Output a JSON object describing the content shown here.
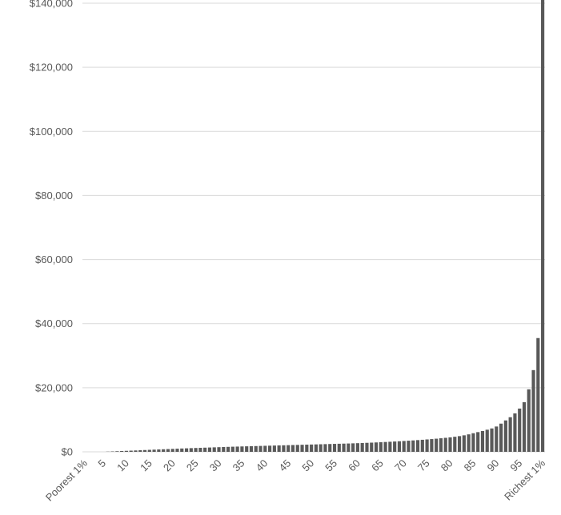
{
  "chart_data": {
    "type": "bar",
    "title": "",
    "xlabel": "",
    "ylabel": "",
    "ylim": [
      0,
      140000
    ],
    "y_ticks": [
      0,
      20000,
      40000,
      60000,
      80000,
      100000,
      120000,
      140000
    ],
    "y_tick_labels": [
      "$0",
      "$20,000",
      "$40,000",
      "$60,000",
      "$80,000",
      "$100,000",
      "$120,000",
      "$140,000"
    ],
    "x_tick_labels": [
      "Poorest 1%",
      "5",
      "10",
      "15",
      "20",
      "25",
      "30",
      "35",
      "40",
      "45",
      "50",
      "55",
      "60",
      "65",
      "70",
      "75",
      "80",
      "85",
      "90",
      "95",
      "Richest 1%"
    ],
    "x_tick_positions": [
      1,
      5,
      10,
      15,
      20,
      25,
      30,
      35,
      40,
      45,
      50,
      55,
      60,
      65,
      70,
      75,
      80,
      85,
      90,
      95,
      100
    ],
    "categories": [
      1,
      2,
      3,
      4,
      5,
      6,
      7,
      8,
      9,
      10,
      11,
      12,
      13,
      14,
      15,
      16,
      17,
      18,
      19,
      20,
      21,
      22,
      23,
      24,
      25,
      26,
      27,
      28,
      29,
      30,
      31,
      32,
      33,
      34,
      35,
      36,
      37,
      38,
      39,
      40,
      41,
      42,
      43,
      44,
      45,
      46,
      47,
      48,
      49,
      50,
      51,
      52,
      53,
      54,
      55,
      56,
      57,
      58,
      59,
      60,
      61,
      62,
      63,
      64,
      65,
      66,
      67,
      68,
      69,
      70,
      71,
      72,
      73,
      74,
      75,
      76,
      77,
      78,
      79,
      80,
      81,
      82,
      83,
      84,
      85,
      86,
      87,
      88,
      89,
      90,
      91,
      92,
      93,
      94,
      95,
      96,
      97,
      98,
      99,
      100
    ],
    "values": [
      0,
      0,
      0,
      0,
      0,
      60,
      120,
      190,
      250,
      310,
      370,
      430,
      500,
      560,
      620,
      680,
      740,
      800,
      860,
      920,
      980,
      1040,
      1090,
      1150,
      1200,
      1250,
      1300,
      1350,
      1400,
      1450,
      1500,
      1550,
      1600,
      1640,
      1680,
      1720,
      1760,
      1800,
      1840,
      1880,
      1920,
      1960,
      2000,
      2040,
      2080,
      2120,
      2160,
      2200,
      2240,
      2280,
      2320,
      2360,
      2400,
      2440,
      2480,
      2520,
      2560,
      2600,
      2650,
      2700,
      2750,
      2810,
      2870,
      2930,
      3000,
      3070,
      3140,
      3220,
      3300,
      3380,
      3470,
      3560,
      3660,
      3760,
      3870,
      3980,
      4100,
      4230,
      4370,
      4520,
      4700,
      4900,
      5150,
      5450,
      5800,
      6150,
      6500,
      6900,
      7300,
      7900,
      8800,
      9800,
      10800,
      12000,
      13500,
      15500,
      19500,
      25500,
      35500,
      142000
    ]
  }
}
